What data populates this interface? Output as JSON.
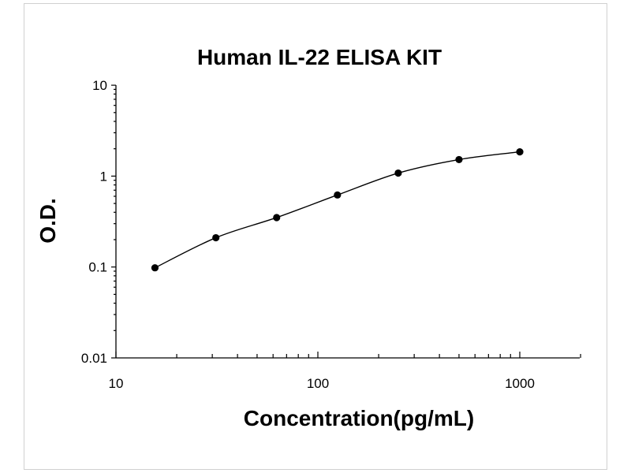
{
  "chart_data": {
    "type": "scatter",
    "title": "Human IL-22 ELISA KIT",
    "xlabel": "Concentration(pg/mL)",
    "ylabel": "O.D.",
    "x_scale": "log",
    "y_scale": "log",
    "xlim": [
      10,
      2000
    ],
    "ylim": [
      0.01,
      10
    ],
    "x_ticks": [
      10,
      100,
      1000
    ],
    "x_tick_labels": [
      "10",
      "100",
      "1000"
    ],
    "y_ticks": [
      0.01,
      0.1,
      1,
      10
    ],
    "y_tick_labels": [
      "0.01",
      "0.1",
      "1",
      "10"
    ],
    "grid": false,
    "legend": "none",
    "fit_curve": true,
    "series": [
      {
        "x": [
          15.6,
          31.25,
          62.5,
          125,
          250,
          500,
          1000
        ],
        "y": [
          0.098,
          0.21,
          0.35,
          0.62,
          1.08,
          1.52,
          1.85
        ]
      }
    ]
  }
}
